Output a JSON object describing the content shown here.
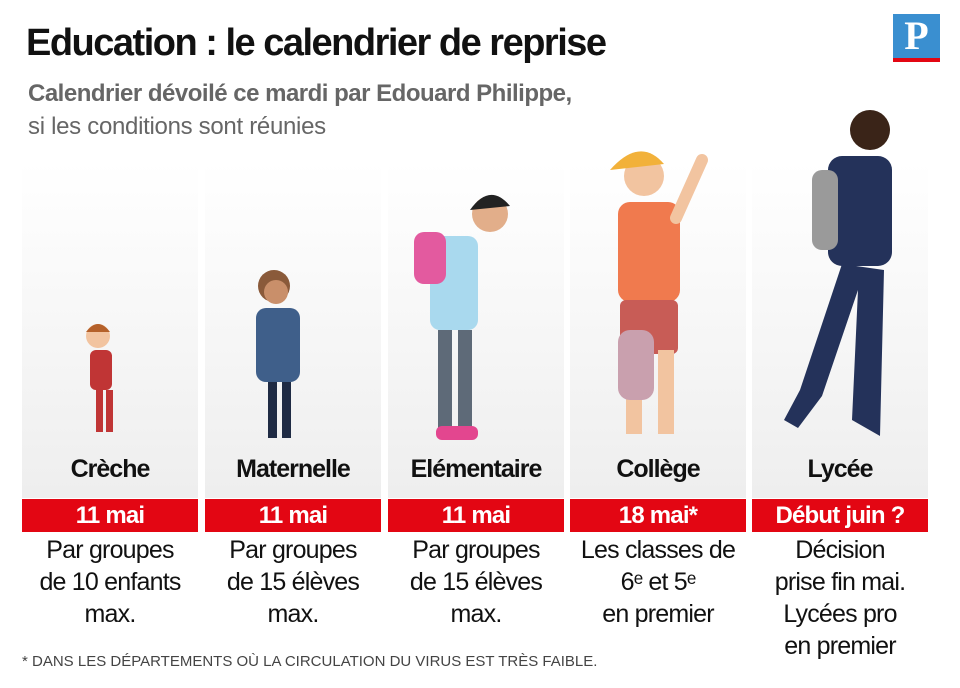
{
  "header": {
    "title": "Education : le calendrier de reprise",
    "subtitle": "Calendrier dévoilé ce mardi par Edouard Philippe,",
    "subtitle_2": "si les conditions sont réunies"
  },
  "logo": "P",
  "columns": [
    {
      "label": "Crèche",
      "date": "11 mai",
      "lines": [
        "Par groupes",
        "de 10 enfants",
        "max."
      ]
    },
    {
      "label": "Maternelle",
      "date": "11 mai",
      "lines": [
        "Par groupes",
        "de 15 élèves",
        "max."
      ]
    },
    {
      "label": "Elémentaire",
      "date": "11 mai",
      "lines": [
        "Par groupes",
        "de 15 élèves",
        "max."
      ]
    },
    {
      "label": "Collège",
      "date": "18 mai*",
      "lines": [
        "Les classes de",
        "6ᵉ et 5ᵉ",
        "en premier"
      ]
    },
    {
      "label": "Lycée",
      "date": "Début juin ?",
      "lines": [
        "Décision",
        "prise fin mai.",
        "Lycées pro",
        "en premier"
      ]
    }
  ],
  "footnote": "* DANS LES DÉPARTEMENTS OÙ LA CIRCULATION DU VIRUS EST TRÈS FAIBLE."
}
